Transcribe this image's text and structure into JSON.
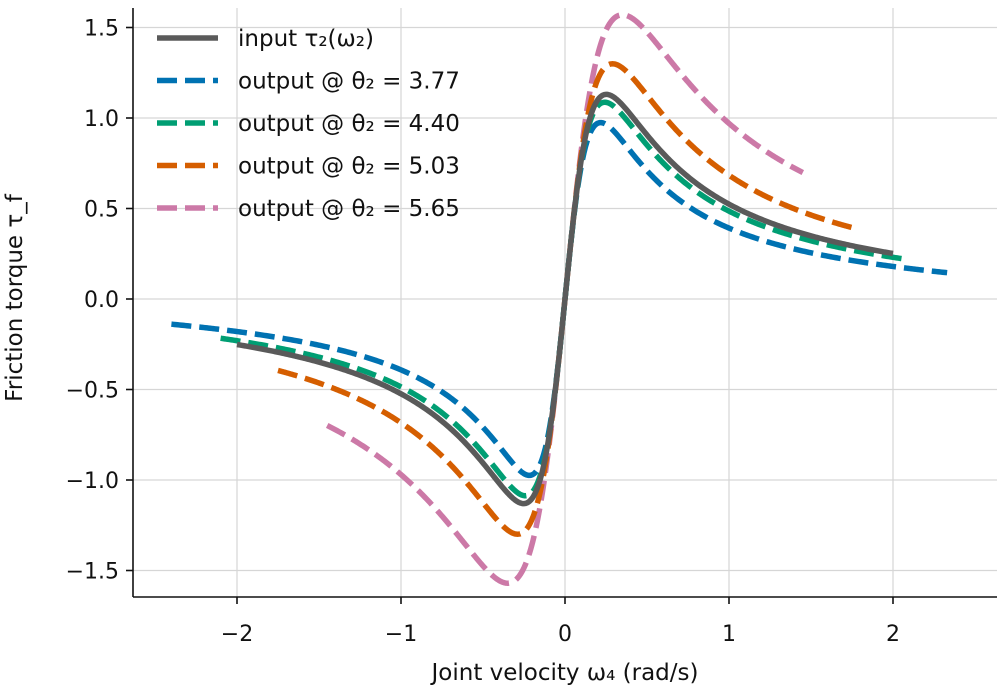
{
  "chart_data": {
    "type": "line",
    "xlabel": "Joint velocity ω₄ (rad/s)",
    "ylabel": "Friction torque τ_f",
    "xlim": [
      -2.65,
      2.65
    ],
    "ylim": [
      -1.65,
      1.65
    ],
    "xticks": [
      -2,
      -1,
      0,
      1,
      2
    ],
    "xtick_labels": [
      "−2",
      "−1",
      "0",
      "1",
      "2"
    ],
    "yticks": [
      -1.5,
      -1.0,
      -0.5,
      0.0,
      0.5,
      1.0,
      1.5
    ],
    "ytick_labels": [
      "−1.5",
      "−1.0",
      "−0.5",
      "0.0",
      "0.5",
      "1.0",
      "1.5"
    ],
    "grid": true,
    "legend_position": "upper-left",
    "series": [
      {
        "name": "input τ₂(ω₂)",
        "color": "#5a5a5a",
        "dash": "solid",
        "model": {
          "scale": 1.0,
          "xmin": -2.0,
          "xmax": 2.0
        }
      },
      {
        "name": "output @ θ₂ = 3.77",
        "color": "#0072b2",
        "dash": "dashed",
        "model": {
          "scale": 1.16,
          "xmin": -2.4,
          "xmax": 2.33
        }
      },
      {
        "name": "output @ θ₂ = 4.40",
        "color": "#009e73",
        "dash": "dashed",
        "model": {
          "scale": 1.04,
          "xmin": -2.1,
          "xmax": 2.09
        }
      },
      {
        "name": "output @ θ₂ = 5.03",
        "color": "#d55e00",
        "dash": "dashed",
        "model": {
          "scale": 0.87,
          "xmin": -1.75,
          "xmax": 1.75
        }
      },
      {
        "name": "output @ θ₂ = 5.65",
        "color": "#cc79a7",
        "dash": "dashed",
        "model": {
          "scale": 0.72,
          "xmin": -1.45,
          "xmax": 1.45
        }
      }
    ],
    "base_curve": {
      "form": "k1*w/(w^2 + a) + c*w",
      "k1": 0.574,
      "a": 0.064,
      "c": -0.0155
    }
  }
}
